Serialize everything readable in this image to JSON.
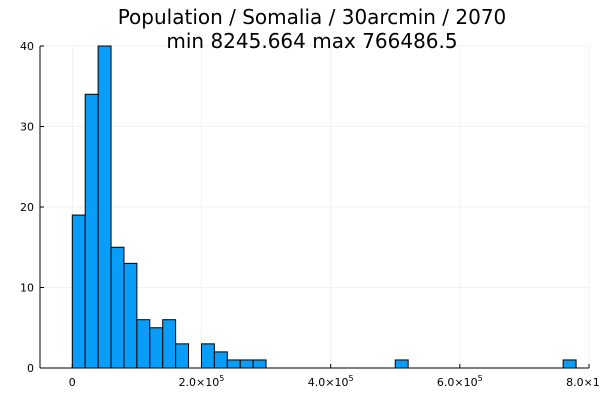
{
  "chart_data": {
    "type": "bar",
    "title": "Population / Somalia / 30arcmin / 2070",
    "subtitle": "min 8245.664  max 766486.5",
    "xlabel": "",
    "ylabel": "",
    "xlim": [
      -50000,
      800000
    ],
    "ylim": [
      0,
      40
    ],
    "grid": true,
    "legend": "none",
    "bar_color": "#089df9",
    "bin_width": 20000,
    "bins": [
      {
        "start": 0,
        "count": 19
      },
      {
        "start": 20000,
        "count": 34
      },
      {
        "start": 40000,
        "count": 40
      },
      {
        "start": 60000,
        "count": 15
      },
      {
        "start": 80000,
        "count": 13
      },
      {
        "start": 100000,
        "count": 6
      },
      {
        "start": 120000,
        "count": 5
      },
      {
        "start": 140000,
        "count": 6
      },
      {
        "start": 160000,
        "count": 3
      },
      {
        "start": 200000,
        "count": 3
      },
      {
        "start": 220000,
        "count": 2
      },
      {
        "start": 240000,
        "count": 1
      },
      {
        "start": 260000,
        "count": 1
      },
      {
        "start": 280000,
        "count": 1
      },
      {
        "start": 500000,
        "count": 1
      },
      {
        "start": 760000,
        "count": 1
      }
    ],
    "y_ticks": [
      {
        "value": 0,
        "label": "0"
      },
      {
        "value": 10,
        "label": "10"
      },
      {
        "value": 20,
        "label": "20"
      },
      {
        "value": 30,
        "label": "30"
      },
      {
        "value": 40,
        "label": "40"
      }
    ],
    "x_ticks": [
      {
        "value": 0,
        "mantissa": "0",
        "exponent": ""
      },
      {
        "value": 200000,
        "mantissa": "2.0×10",
        "exponent": "5"
      },
      {
        "value": 400000,
        "mantissa": "4.0×10",
        "exponent": "5"
      },
      {
        "value": 600000,
        "mantissa": "6.0×10",
        "exponent": "5"
      },
      {
        "value": 800000,
        "mantissa": "8.0×10",
        "exponent": "5"
      }
    ]
  }
}
